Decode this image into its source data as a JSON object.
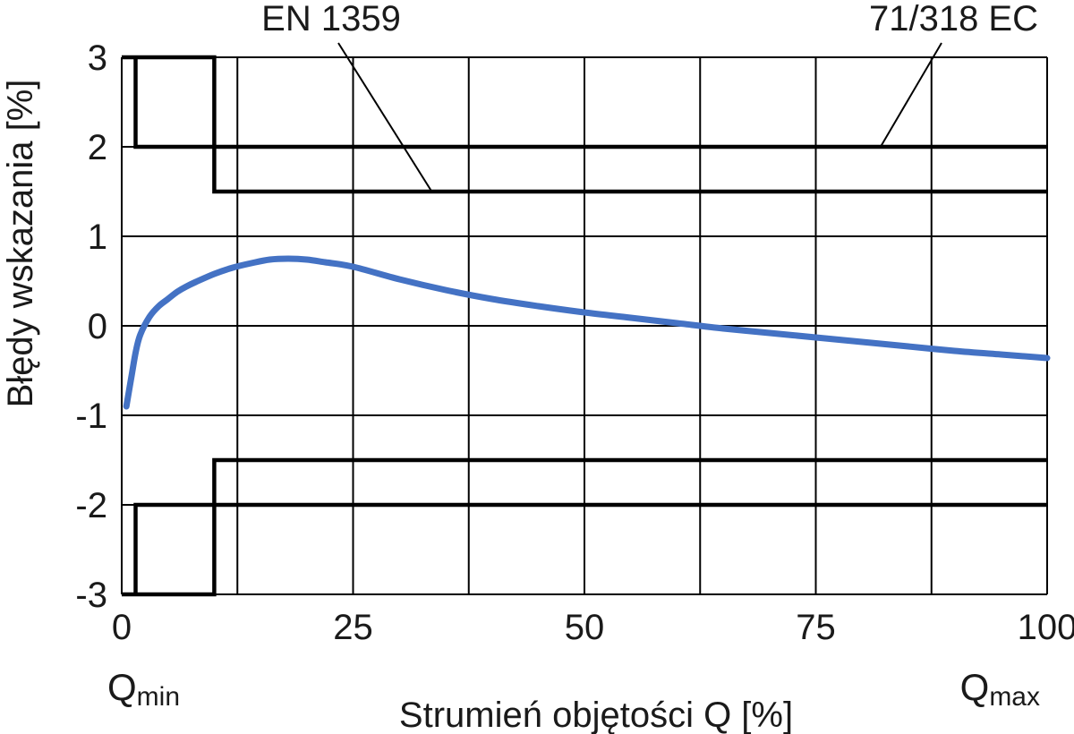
{
  "chart_data": {
    "type": "line",
    "xlabel": "Strumień objętości Q [%]",
    "ylabel": "Błędy wskazania [%]",
    "xlim": [
      0,
      100
    ],
    "ylim": [
      -3,
      3
    ],
    "x_ticks": [
      0,
      25,
      50,
      75,
      100
    ],
    "y_ticks": [
      3,
      2,
      1,
      0,
      -1,
      -2,
      -3
    ],
    "x_tick_labels": [
      "0",
      "25",
      "50",
      "75",
      "100"
    ],
    "y_tick_labels": [
      "3",
      "2",
      "1",
      "0",
      "-1",
      "-2",
      "-3"
    ],
    "x_gridlines": [
      0,
      12.5,
      25,
      37.5,
      50,
      62.5,
      75,
      87.5,
      100
    ],
    "y_gridlines": [
      -3,
      -2,
      -1,
      0,
      1,
      2,
      3
    ],
    "grid": true,
    "x_endpoint_labels": {
      "min": {
        "main": "Q",
        "sub": "min"
      },
      "max": {
        "main": "Q",
        "sub": "max"
      }
    },
    "curve_color": "#4472c4",
    "series": [
      {
        "values": [
          [
            0.5,
            -0.9
          ],
          [
            1,
            -0.6
          ],
          [
            1.5,
            -0.3
          ],
          [
            2,
            -0.1
          ],
          [
            3,
            0.1
          ],
          [
            4,
            0.22
          ],
          [
            5,
            0.3
          ],
          [
            6,
            0.38
          ],
          [
            7,
            0.44
          ],
          [
            8,
            0.49
          ],
          [
            10,
            0.58
          ],
          [
            12,
            0.65
          ],
          [
            14,
            0.7
          ],
          [
            16,
            0.74
          ],
          [
            18,
            0.75
          ],
          [
            20,
            0.74
          ],
          [
            22,
            0.71
          ],
          [
            25,
            0.66
          ],
          [
            30,
            0.52
          ],
          [
            35,
            0.4
          ],
          [
            40,
            0.3
          ],
          [
            45,
            0.22
          ],
          [
            50,
            0.15
          ],
          [
            55,
            0.09
          ],
          [
            60,
            0.03
          ],
          [
            65,
            -0.03
          ],
          [
            70,
            -0.08
          ],
          [
            75,
            -0.13
          ],
          [
            80,
            -0.18
          ],
          [
            85,
            -0.23
          ],
          [
            90,
            -0.28
          ],
          [
            95,
            -0.32
          ],
          [
            100,
            -0.36
          ]
        ]
      }
    ],
    "limit_envelopes": [
      {
        "name": "EN 1359",
        "upper": [
          [
            0,
            3
          ],
          [
            10,
            3
          ],
          [
            10,
            1.5
          ],
          [
            100,
            1.5
          ]
        ],
        "lower": [
          [
            0,
            -3
          ],
          [
            10,
            -3
          ],
          [
            10,
            -1.5
          ],
          [
            100,
            -1.5
          ]
        ]
      },
      {
        "name": "71/318 EC",
        "upper": [
          [
            1.5,
            3
          ],
          [
            1.5,
            2
          ],
          [
            100,
            2
          ]
        ],
        "lower": [
          [
            1.5,
            -3
          ],
          [
            1.5,
            -2
          ],
          [
            100,
            -2
          ]
        ]
      }
    ],
    "annotations": [
      {
        "text": "EN 1359",
        "points_to": [
          33.5,
          1.5
        ]
      },
      {
        "text": "71/318 EC",
        "points_to": [
          82,
          2
        ]
      }
    ]
  }
}
